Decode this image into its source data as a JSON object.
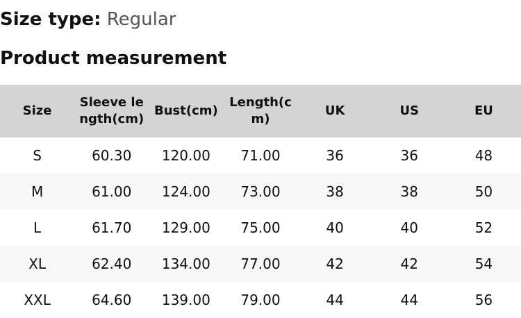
{
  "size_type": {
    "label": "Size type:",
    "value": "Regular"
  },
  "section_title": "Product measurement",
  "table": {
    "headers": [
      "Size",
      "Sleeve length(cm)",
      "Bust(cm)",
      "Length(cm)",
      "UK",
      "US",
      "EU"
    ],
    "rows": [
      [
        "S",
        "60.30",
        "120.00",
        "71.00",
        "36",
        "36",
        "48"
      ],
      [
        "M",
        "61.00",
        "124.00",
        "73.00",
        "38",
        "38",
        "50"
      ],
      [
        "L",
        "61.70",
        "129.00",
        "75.00",
        "40",
        "40",
        "52"
      ],
      [
        "XL",
        "62.40",
        "134.00",
        "77.00",
        "42",
        "42",
        "54"
      ],
      [
        "XXL",
        "64.60",
        "139.00",
        "79.00",
        "44",
        "44",
        "56"
      ]
    ]
  },
  "colors": {
    "header_bg": "#d4d4d4",
    "alt_row_bg": "#f8f8f8"
  }
}
